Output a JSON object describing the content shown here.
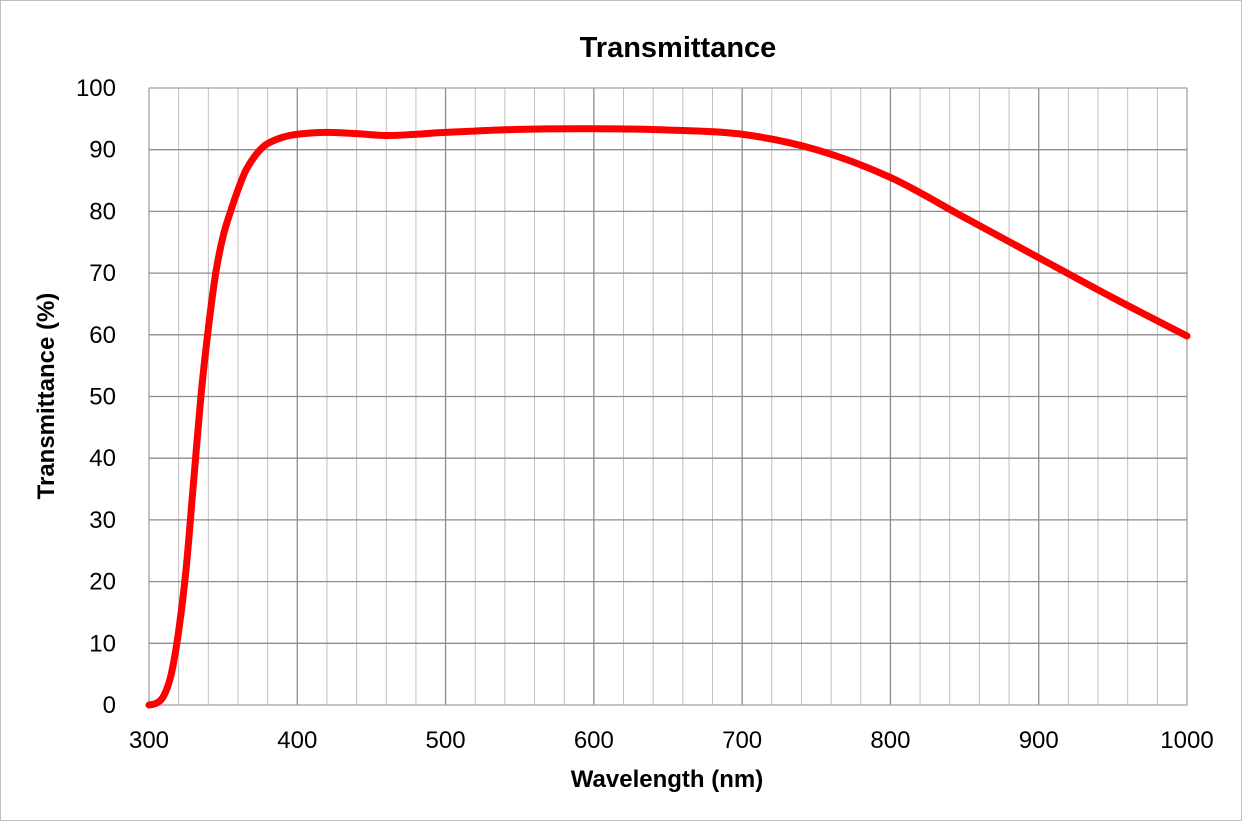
{
  "chart_data": {
    "type": "line",
    "title": "Transmittance",
    "xlabel": "Wavelength (nm)",
    "ylabel": "Transmittance (%)",
    "xlim": [
      300,
      1000
    ],
    "ylim": [
      0,
      100
    ],
    "x_ticks": [
      300,
      400,
      500,
      600,
      700,
      800,
      900,
      1000
    ],
    "x_tick_labels": [
      "300",
      "400",
      "500",
      "600",
      "700",
      "800",
      "900",
      "1000"
    ],
    "x_minor_step": 20,
    "y_ticks": [
      0,
      10,
      20,
      30,
      40,
      50,
      60,
      70,
      80,
      90,
      100
    ],
    "y_tick_labels": [
      "0",
      "10",
      "20",
      "30",
      "40",
      "50",
      "60",
      "70",
      "80",
      "90",
      "100"
    ],
    "grid": true,
    "legend": "none",
    "series": [
      {
        "color": "#ff0000",
        "x": [
          300,
          305,
          310,
          315,
          320,
          325,
          330,
          335,
          340,
          345,
          350,
          355,
          360,
          365,
          370,
          375,
          380,
          390,
          400,
          420,
          440,
          460,
          480,
          500,
          550,
          600,
          650,
          700,
          750,
          800,
          850,
          900,
          950,
          1000
        ],
        "y": [
          0,
          0.3,
          1.5,
          5,
          12,
          22,
          36,
          50,
          61,
          70,
          76,
          80,
          83.5,
          86.5,
          88.5,
          90,
          91,
          92,
          92.5,
          92.8,
          92.6,
          92.3,
          92.5,
          92.8,
          93.3,
          93.4,
          93.2,
          92.5,
          90,
          85.5,
          79,
          72.5,
          66,
          59.8
        ]
      }
    ]
  }
}
